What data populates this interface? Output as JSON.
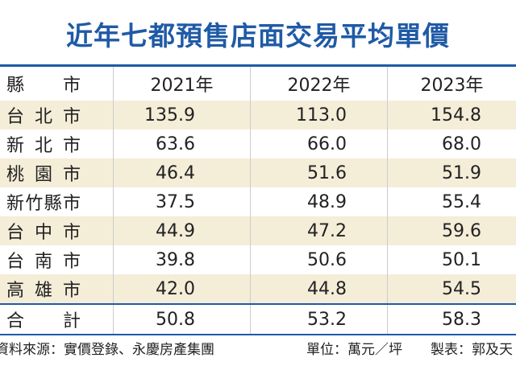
{
  "header": {
    "title": "近年七都預售店面交易平均單價"
  },
  "table": {
    "columns": [
      "縣市",
      "2021年",
      "2022年",
      "2023年"
    ],
    "rows": [
      [
        "台北市",
        "135.9",
        "113.0",
        "154.8"
      ],
      [
        "新北市",
        "63.6",
        "66.0",
        "68.0"
      ],
      [
        "桃園市",
        "46.4",
        "51.6",
        "51.9"
      ],
      [
        "新竹縣市",
        "37.5",
        "48.9",
        "55.4"
      ],
      [
        "台中市",
        "44.9",
        "47.2",
        "59.6"
      ],
      [
        "台南市",
        "39.8",
        "50.6",
        "50.1"
      ],
      [
        "高雄市",
        "42.0",
        "44.8",
        "54.5"
      ]
    ],
    "total": [
      "合計",
      "50.8",
      "53.2",
      "58.3"
    ]
  },
  "footer": {
    "source": "資料來源：實價登錄、永慶房產集團",
    "unit": "單位：萬元／坪",
    "credit": "製表：郭及天"
  }
}
